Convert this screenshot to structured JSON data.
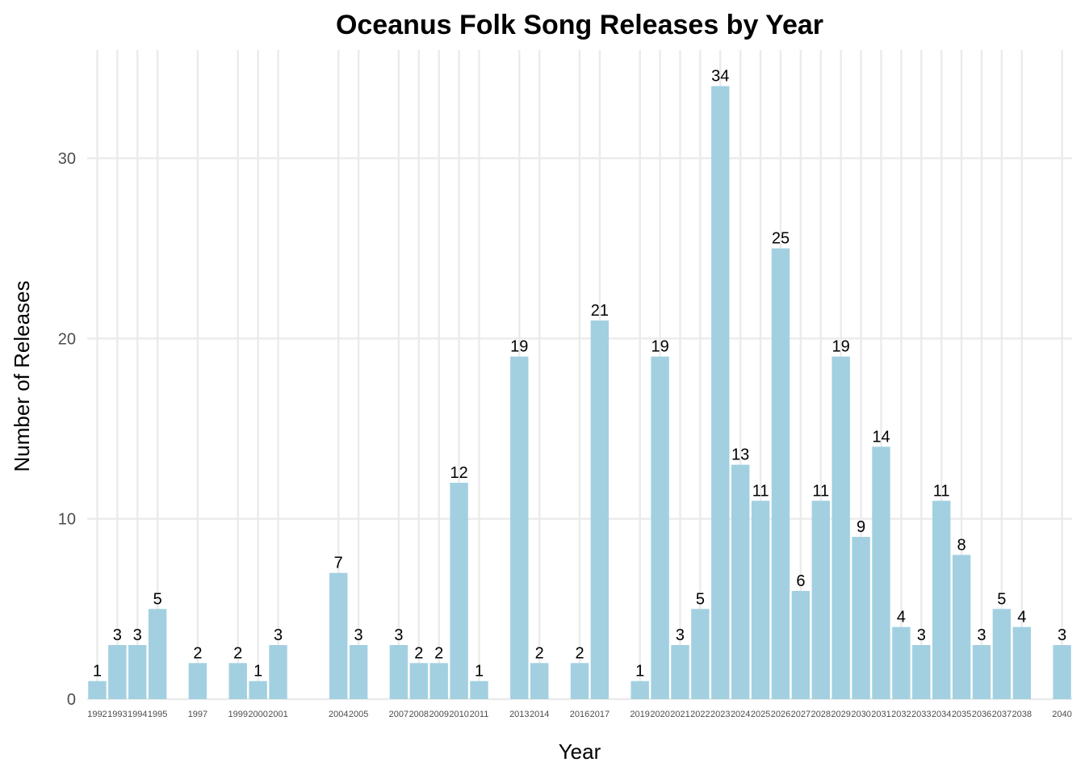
{
  "chart_data": {
    "type": "bar",
    "title": "Oceanus Folk Song Releases by Year",
    "xlabel": "Year",
    "ylabel": "Number of Releases",
    "ylim": [
      0,
      36
    ],
    "yticks": [
      "0",
      "10",
      "20",
      "30"
    ],
    "grid": true,
    "bar_color": "#a2d0e1",
    "categories": [
      "1992",
      "1993",
      "1994",
      "1995",
      "1997",
      "1999",
      "2000",
      "2001",
      "2004",
      "2005",
      "2007",
      "2008",
      "2009",
      "2010",
      "2011",
      "2013",
      "2014",
      "2016",
      "2017",
      "2019",
      "2020",
      "2021",
      "2022",
      "2023",
      "2024",
      "2025",
      "2026",
      "2027",
      "2028",
      "2029",
      "2030",
      "2031",
      "2032",
      "2033",
      "2034",
      "2035",
      "2036",
      "2037",
      "2038",
      "2040"
    ],
    "values": [
      1,
      3,
      3,
      5,
      2,
      2,
      1,
      3,
      7,
      3,
      3,
      2,
      2,
      12,
      1,
      19,
      2,
      2,
      21,
      1,
      19,
      3,
      5,
      34,
      13,
      11,
      25,
      6,
      11,
      19,
      9,
      14,
      4,
      3,
      11,
      8,
      3,
      5,
      4,
      3
    ]
  }
}
